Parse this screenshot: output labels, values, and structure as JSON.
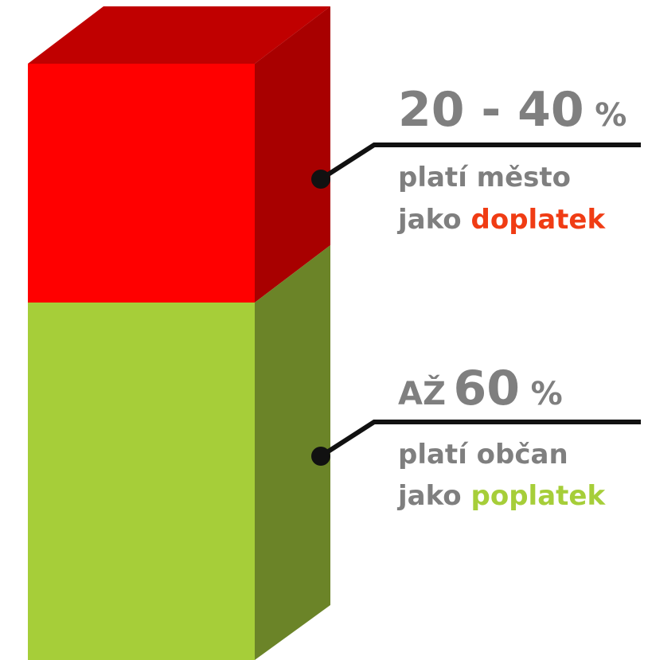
{
  "callouts": [
    {
      "value_text": "20 - 40",
      "unit": "%",
      "line1": "platí město",
      "line2_prefix": "jako",
      "line2_highlight": "doplatek"
    },
    {
      "prefix": "AŽ",
      "value_text": "60",
      "unit": "%",
      "line1": "platí občan",
      "line2_prefix": "jako",
      "line2_highlight": "poplatek"
    }
  ]
}
